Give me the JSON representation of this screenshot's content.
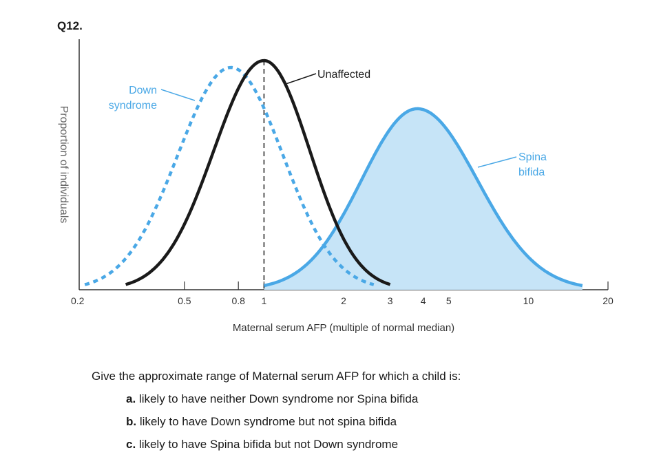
{
  "question_number": "Q12.",
  "chart_data": {
    "type": "line",
    "xlabel": "Maternal serum AFP (multiple of normal median)",
    "ylabel": "Proportion of individuals",
    "x_scale": "log",
    "xlim": [
      0.2,
      20
    ],
    "x_ticks": [
      {
        "value": 0.2,
        "label": "0.2"
      },
      {
        "value": 0.5,
        "label": "0.5"
      },
      {
        "value": 0.8,
        "label": "0.8"
      },
      {
        "value": 1,
        "label": "1"
      },
      {
        "value": 2,
        "label": "2"
      },
      {
        "value": 3,
        "label": "3"
      },
      {
        "value": 4,
        "label": "4"
      },
      {
        "value": 5,
        "label": "5"
      },
      {
        "value": 10,
        "label": "10"
      },
      {
        "value": 20,
        "label": "20"
      }
    ],
    "reference_line_x": 1,
    "series": [
      {
        "name": "Down syndrome",
        "style": "dashed",
        "color": "#4aa8e6",
        "x_range": [
          0.21,
          2.6
        ],
        "peak_x": 0.75,
        "peak_y": 0.97
      },
      {
        "name": "Unaffected",
        "style": "solid",
        "color": "#1a1a1a",
        "x_range": [
          0.3,
          3
        ],
        "peak_x": 1,
        "peak_y": 1.0
      },
      {
        "name": "Spina bifida",
        "style": "solid",
        "fill": "#c6e4f7",
        "color": "#4aa8e6",
        "x_range": [
          1.0,
          16
        ],
        "peak_x": 3.8,
        "peak_y": 0.79
      }
    ],
    "annotations": {
      "down": [
        "Down",
        "syndrome"
      ],
      "unaffected": "Unaffected",
      "spina": [
        "Spina",
        "bifida"
      ]
    }
  },
  "question": {
    "prompt": "Give the approximate range of Maternal serum AFP for which a child is:",
    "options": [
      {
        "letter": "a.",
        "text": "likely to have neither Down syndrome nor Spina bifida"
      },
      {
        "letter": "b.",
        "text": "likely to have Down syndrome but not spina bifida"
      },
      {
        "letter": "c.",
        "text": "likely to have Spina bifida but not Down syndrome"
      }
    ]
  }
}
